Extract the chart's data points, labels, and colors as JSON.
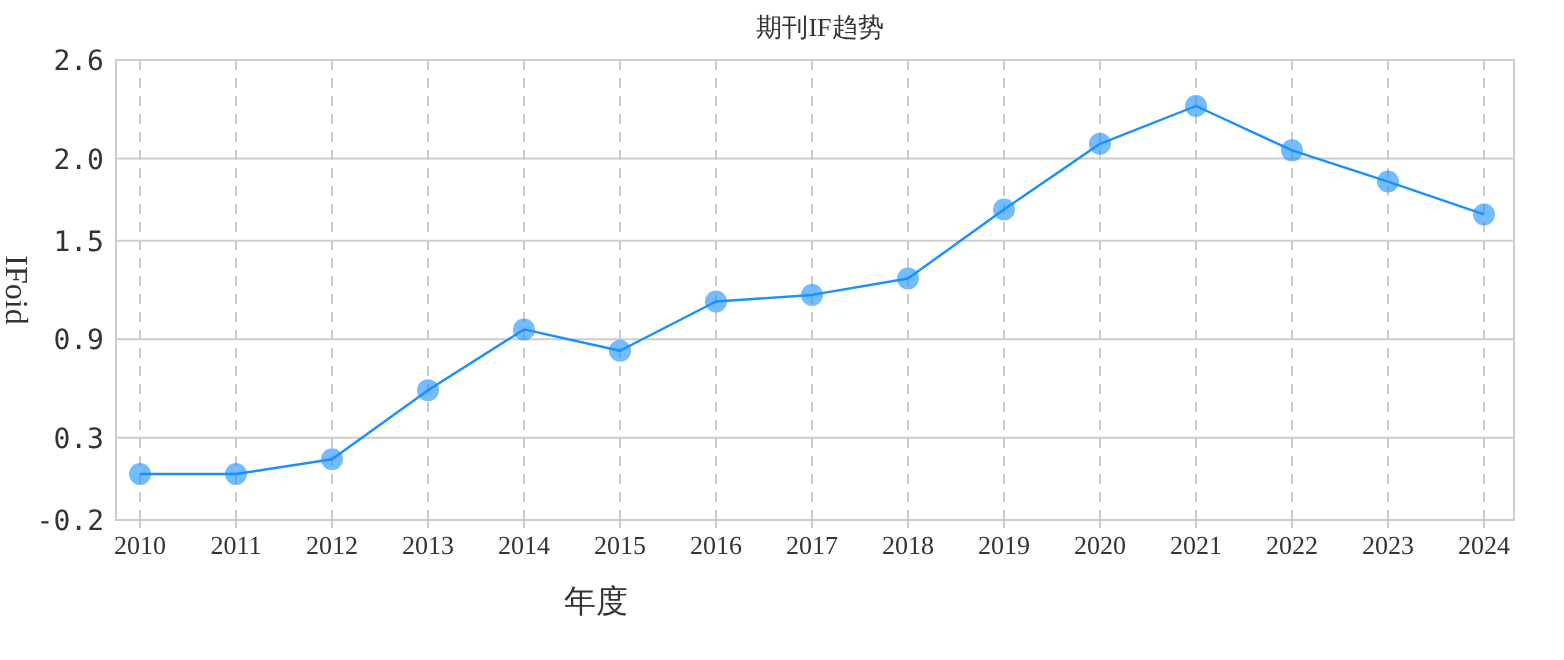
{
  "chart_data": {
    "type": "line",
    "title": "期刊IF趋势",
    "xlabel": "年度",
    "ylabel": "IFoid",
    "categories": [
      "2010",
      "2011",
      "2012",
      "2013",
      "2014",
      "2015",
      "2016",
      "2017",
      "2018",
      "2019",
      "2020",
      "2021",
      "2022",
      "2023",
      "2024"
    ],
    "series": [
      {
        "color": "#1890ff",
        "values": [
          0.08,
          0.08,
          0.17,
          0.59,
          0.96,
          0.83,
          1.13,
          1.17,
          1.27,
          1.69,
          2.09,
          2.32,
          2.05,
          1.86,
          1.66
        ]
      }
    ],
    "ylim": [
      -0.2,
      2.6
    ],
    "yticks": [
      -0.2,
      0.3,
      0.9,
      1.5,
      {
        "value": 2.0,
        "label": "2.0"
      },
      2.6
    ],
    "grid": true,
    "marker": "circle",
    "line_style": "solid"
  }
}
